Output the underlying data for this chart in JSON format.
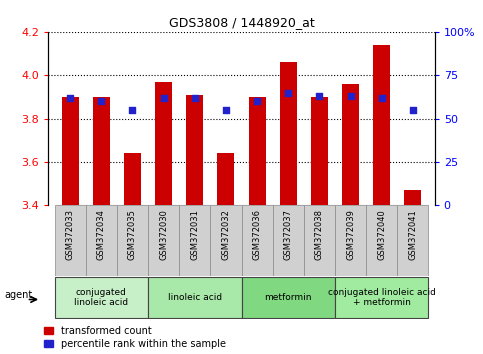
{
  "title": "GDS3808 / 1448920_at",
  "samples": [
    "GSM372033",
    "GSM372034",
    "GSM372035",
    "GSM372030",
    "GSM372031",
    "GSM372032",
    "GSM372036",
    "GSM372037",
    "GSM372038",
    "GSM372039",
    "GSM372040",
    "GSM372041"
  ],
  "bar_values": [
    3.9,
    3.9,
    3.64,
    3.97,
    3.91,
    3.64,
    3.9,
    4.06,
    3.9,
    3.96,
    4.14,
    3.47
  ],
  "percentile_values": [
    62,
    60,
    55,
    62,
    62,
    55,
    60,
    65,
    63,
    63,
    62,
    55
  ],
  "ylim_left": [
    3.4,
    4.2
  ],
  "ylim_right": [
    0,
    100
  ],
  "y_ticks_left": [
    3.4,
    3.6,
    3.8,
    4.0,
    4.2
  ],
  "y_ticks_right": [
    0,
    25,
    50,
    75,
    100
  ],
  "bar_color": "#cc0000",
  "dot_color": "#2222cc",
  "bar_bottom": 3.4,
  "agent_groups": [
    {
      "label": "conjugated\nlinoleic acid",
      "start": 0,
      "end": 3,
      "color": "#c8f0c8"
    },
    {
      "label": "linoleic acid",
      "start": 3,
      "end": 6,
      "color": "#a8e8a8"
    },
    {
      "label": "metformin",
      "start": 6,
      "end": 9,
      "color": "#80d880"
    },
    {
      "label": "conjugated linoleic acid\n+ metformin",
      "start": 9,
      "end": 12,
      "color": "#a0eba0"
    }
  ],
  "legend_bar_color": "#cc0000",
  "legend_dot_color": "#2222cc",
  "legend_bar_label": "transformed count",
  "legend_dot_label": "percentile rank within the sample",
  "plot_bg_color": "#ffffff",
  "sample_bg_color": "#d0d0d0",
  "bar_width": 0.55
}
